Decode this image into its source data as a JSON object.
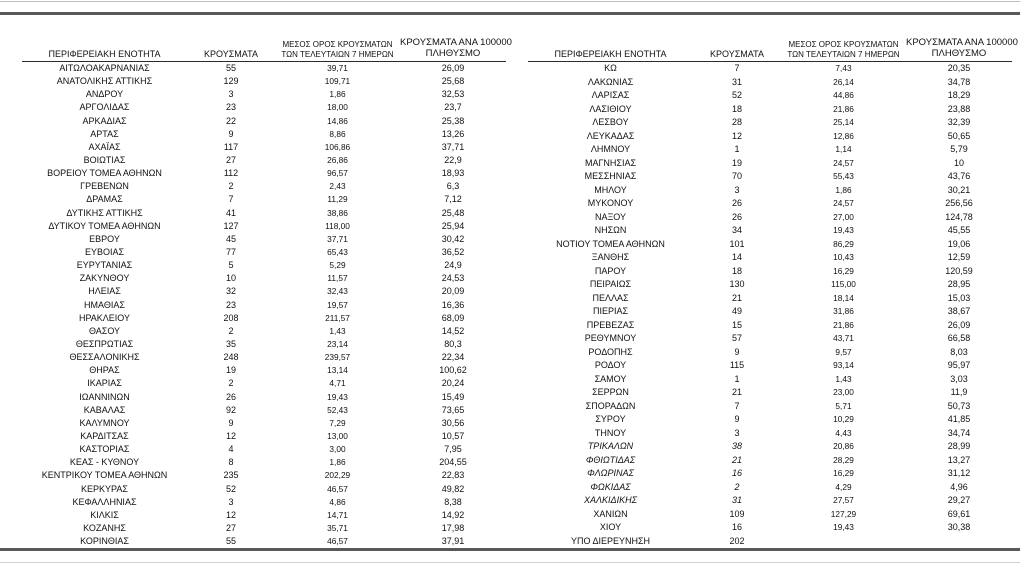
{
  "document": {
    "headers": {
      "region": "ΠΕΡΙΦΕΡΕΙΑΚΗ ΕΝΟΤΗΤΑ",
      "cases": "ΚΡΟΥΣΜΑΤΑ",
      "avg7_line1": "ΜΕΣΟΣ ΟΡΟΣ ΚΡΟΥΣΜΑΤΩΝ",
      "avg7_line2": "ΤΩΝ ΤΕΛΕΥΤΑΙΩΝ 7 ΗΜΕΡΩΝ",
      "per100k_line1": "ΚΡΟΥΣΜΑΤΑ ΑΝΑ 100000",
      "per100k_line2": "ΠΛΗΘΥΣΜΟ"
    },
    "colors": {
      "text": "#111111",
      "rule_dark": "#595959",
      "rule_light": "#bdbdbd",
      "header_rule": "#2b2b2b",
      "background": "#ffffff"
    },
    "left_rows": [
      {
        "name": "ΑΙΤΩΛΟΑΚΑΡΝΑΝΙΑΣ",
        "cases": "55",
        "avg7": "39,71",
        "per100k": "26,09"
      },
      {
        "name": "ΑΝΑΤΟΛΙΚΗΣ ΑΤΤΙΚΗΣ",
        "cases": "129",
        "avg7": "109,71",
        "per100k": "25,68"
      },
      {
        "name": "ΑΝΔΡΟΥ",
        "cases": "3",
        "avg7": "1,86",
        "per100k": "32,53"
      },
      {
        "name": "ΑΡΓΟΛΙΔΑΣ",
        "cases": "23",
        "avg7": "18,00",
        "per100k": "23,7"
      },
      {
        "name": "ΑΡΚΑΔΙΑΣ",
        "cases": "22",
        "avg7": "14,86",
        "per100k": "25,38"
      },
      {
        "name": "ΑΡΤΑΣ",
        "cases": "9",
        "avg7": "8,86",
        "per100k": "13,26"
      },
      {
        "name": "ΑΧΑΪΑΣ",
        "cases": "117",
        "avg7": "106,86",
        "per100k": "37,71"
      },
      {
        "name": "ΒΟΙΩΤΙΑΣ",
        "cases": "27",
        "avg7": "26,86",
        "per100k": "22,9"
      },
      {
        "name": "ΒΟΡΕΙΟΥ ΤΟΜΕΑ ΑΘΗΝΩΝ",
        "cases": "112",
        "avg7": "96,57",
        "per100k": "18,93"
      },
      {
        "name": "ΓΡΕΒΕΝΩΝ",
        "cases": "2",
        "avg7": "2,43",
        "per100k": "6,3"
      },
      {
        "name": "ΔΡΑΜΑΣ",
        "cases": "7",
        "avg7": "11,29",
        "per100k": "7,12"
      },
      {
        "name": "ΔΥΤΙΚΗΣ ΑΤΤΙΚΗΣ",
        "cases": "41",
        "avg7": "38,86",
        "per100k": "25,48"
      },
      {
        "name": "ΔΥΤΙΚΟΥ ΤΟΜΕΑ ΑΘΗΝΩΝ",
        "cases": "127",
        "avg7": "118,00",
        "per100k": "25,94"
      },
      {
        "name": "ΕΒΡΟΥ",
        "cases": "45",
        "avg7": "37,71",
        "per100k": "30,42"
      },
      {
        "name": "ΕΥΒΟΙΑΣ",
        "cases": "77",
        "avg7": "65,43",
        "per100k": "36,52"
      },
      {
        "name": "ΕΥΡΥΤΑΝΙΑΣ",
        "cases": "5",
        "avg7": "5,29",
        "per100k": "24,9"
      },
      {
        "name": "ΖΑΚΥΝΘΟΥ",
        "cases": "10",
        "avg7": "11,57",
        "per100k": "24,53"
      },
      {
        "name": "ΗΛΕΙΑΣ",
        "cases": "32",
        "avg7": "32,43",
        "per100k": "20,09"
      },
      {
        "name": "ΗΜΑΘΙΑΣ",
        "cases": "23",
        "avg7": "19,57",
        "per100k": "16,36"
      },
      {
        "name": "ΗΡΑΚΛΕΙΟΥ",
        "cases": "208",
        "avg7": "211,57",
        "per100k": "68,09"
      },
      {
        "name": "ΘΑΣΟΥ",
        "cases": "2",
        "avg7": "1,43",
        "per100k": "14,52"
      },
      {
        "name": "ΘΕΣΠΡΩΤΙΑΣ",
        "cases": "35",
        "avg7": "23,14",
        "per100k": "80,3"
      },
      {
        "name": "ΘΕΣΣΑΛΟΝΙΚΗΣ",
        "cases": "248",
        "avg7": "239,57",
        "per100k": "22,34"
      },
      {
        "name": "ΘΗΡΑΣ",
        "cases": "19",
        "avg7": "13,14",
        "per100k": "100,62"
      },
      {
        "name": "ΙΚΑΡΙΑΣ",
        "cases": "2",
        "avg7": "4,71",
        "per100k": "20,24"
      },
      {
        "name": "ΙΩΑΝΝΙΝΩΝ",
        "cases": "26",
        "avg7": "19,43",
        "per100k": "15,49"
      },
      {
        "name": "ΚΑΒΑΛΑΣ",
        "cases": "92",
        "avg7": "52,43",
        "per100k": "73,65"
      },
      {
        "name": "ΚΑΛΥΜΝΟΥ",
        "cases": "9",
        "avg7": "7,29",
        "per100k": "30,56"
      },
      {
        "name": "ΚΑΡΔΙΤΣΑΣ",
        "cases": "12",
        "avg7": "13,00",
        "per100k": "10,57"
      },
      {
        "name": "ΚΑΣΤΟΡΙΑΣ",
        "cases": "4",
        "avg7": "3,00",
        "per100k": "7,95"
      },
      {
        "name": "ΚΕΑΣ - ΚΥΘΝΟΥ",
        "cases": "8",
        "avg7": "1,86",
        "per100k": "204,55"
      },
      {
        "name": "ΚΕΝΤΡΙΚΟΥ ΤΟΜΕΑ ΑΘΗΝΩΝ",
        "cases": "235",
        "avg7": "202,29",
        "per100k": "22,83"
      },
      {
        "name": "ΚΕΡΚΥΡΑΣ",
        "cases": "52",
        "avg7": "46,57",
        "per100k": "49,82"
      },
      {
        "name": "ΚΕΦΑΛΛΗΝΙΑΣ",
        "cases": "3",
        "avg7": "4,86",
        "per100k": "8,38"
      },
      {
        "name": "ΚΙΛΚΙΣ",
        "cases": "12",
        "avg7": "14,71",
        "per100k": "14,92"
      },
      {
        "name": "ΚΟΖΑΝΗΣ",
        "cases": "27",
        "avg7": "35,71",
        "per100k": "17,98"
      },
      {
        "name": "ΚΟΡΙΝΘΙΑΣ",
        "cases": "55",
        "avg7": "46,57",
        "per100k": "37,91"
      }
    ],
    "right_rows": [
      {
        "name": "ΚΩ",
        "cases": "7",
        "avg7": "7,43",
        "per100k": "20,35"
      },
      {
        "name": "ΛΑΚΩΝΙΑΣ",
        "cases": "31",
        "avg7": "26,14",
        "per100k": "34,78"
      },
      {
        "name": "ΛΑΡΙΣΑΣ",
        "cases": "52",
        "avg7": "44,86",
        "per100k": "18,29"
      },
      {
        "name": "ΛΑΣΙΘΙΟΥ",
        "cases": "18",
        "avg7": "21,86",
        "per100k": "23,88"
      },
      {
        "name": "ΛΕΣΒΟΥ",
        "cases": "28",
        "avg7": "25,14",
        "per100k": "32,39"
      },
      {
        "name": "ΛΕΥΚΑΔΑΣ",
        "cases": "12",
        "avg7": "12,86",
        "per100k": "50,65"
      },
      {
        "name": "ΛΗΜΝΟΥ",
        "cases": "1",
        "avg7": "1,14",
        "per100k": "5,79"
      },
      {
        "name": "ΜΑΓΝΗΣΙΑΣ",
        "cases": "19",
        "avg7": "24,57",
        "per100k": "10"
      },
      {
        "name": "ΜΕΣΣΗΝΙΑΣ",
        "cases": "70",
        "avg7": "55,43",
        "per100k": "43,76"
      },
      {
        "name": "ΜΗΛΟΥ",
        "cases": "3",
        "avg7": "1,86",
        "per100k": "30,21"
      },
      {
        "name": "ΜΥΚΟΝΟΥ",
        "cases": "26",
        "avg7": "24,57",
        "per100k": "256,56"
      },
      {
        "name": "ΝΑΞΟΥ",
        "cases": "26",
        "avg7": "27,00",
        "per100k": "124,78"
      },
      {
        "name": "ΝΗΣΩΝ",
        "cases": "34",
        "avg7": "19,43",
        "per100k": "45,55"
      },
      {
        "name": "ΝΟΤΙΟΥ ΤΟΜΕΑ ΑΘΗΝΩΝ",
        "cases": "101",
        "avg7": "86,29",
        "per100k": "19,06"
      },
      {
        "name": "ΞΑΝΘΗΣ",
        "cases": "14",
        "avg7": "10,43",
        "per100k": "12,59"
      },
      {
        "name": "ΠΑΡΟΥ",
        "cases": "18",
        "avg7": "16,29",
        "per100k": "120,59"
      },
      {
        "name": "ΠΕΙΡΑΙΩΣ",
        "cases": "130",
        "avg7": "115,00",
        "per100k": "28,95"
      },
      {
        "name": "ΠΕΛΛΑΣ",
        "cases": "21",
        "avg7": "18,14",
        "per100k": "15,03"
      },
      {
        "name": "ΠΙΕΡΙΑΣ",
        "cases": "49",
        "avg7": "31,86",
        "per100k": "38,67"
      },
      {
        "name": "ΠΡΕΒΕΖΑΣ",
        "cases": "15",
        "avg7": "21,86",
        "per100k": "26,09"
      },
      {
        "name": "ΡΕΘΥΜΝΟΥ",
        "cases": "57",
        "avg7": "43,71",
        "per100k": "66,58"
      },
      {
        "name": "ΡΟΔΟΠΗΣ",
        "cases": "9",
        "avg7": "9,57",
        "per100k": "8,03"
      },
      {
        "name": "ΡΟΔΟΥ",
        "cases": "115",
        "avg7": "93,14",
        "per100k": "95,97"
      },
      {
        "name": "ΣΑΜΟΥ",
        "cases": "1",
        "avg7": "1,43",
        "per100k": "3,03"
      },
      {
        "name": "ΣΕΡΡΩΝ",
        "cases": "21",
        "avg7": "23,00",
        "per100k": "11,9"
      },
      {
        "name": "ΣΠΟΡΑΔΩΝ",
        "cases": "7",
        "avg7": "5,71",
        "per100k": "50,73"
      },
      {
        "name": "ΣΥΡΟΥ",
        "cases": "9",
        "avg7": "10,29",
        "per100k": "41,85"
      },
      {
        "name": "ΤΗΝΟΥ",
        "cases": "3",
        "avg7": "4,43",
        "per100k": "34,74"
      },
      {
        "name": "ΤΡΙΚΑΛΩΝ",
        "cases": "38",
        "avg7": "20,86",
        "per100k": "28,99",
        "italic": true
      },
      {
        "name": "ΦΘΙΩΤΙΔΑΣ",
        "cases": "21",
        "avg7": "28,29",
        "per100k": "13,27",
        "italic": true
      },
      {
        "name": "ΦΛΩΡΙΝΑΣ",
        "cases": "16",
        "avg7": "16,29",
        "per100k": "31,12",
        "italic": true
      },
      {
        "name": "ΦΩΚΙΔΑΣ",
        "cases": "2",
        "avg7": "4,29",
        "per100k": "4,96",
        "italic": true
      },
      {
        "name": "ΧΑΛΚΙΔΙΚΗΣ",
        "cases": "31",
        "avg7": "27,57",
        "per100k": "29,27",
        "italic": true
      },
      {
        "name": "ΧΑΝΙΩΝ",
        "cases": "109",
        "avg7": "127,29",
        "per100k": "69,61"
      },
      {
        "name": "ΧΙΟΥ",
        "cases": "16",
        "avg7": "19,43",
        "per100k": "30,38"
      },
      {
        "name": "ΥΠΟ ΔΙΕΡΕΥΝΗΣΗ",
        "cases": "202",
        "avg7": "",
        "per100k": ""
      }
    ]
  }
}
